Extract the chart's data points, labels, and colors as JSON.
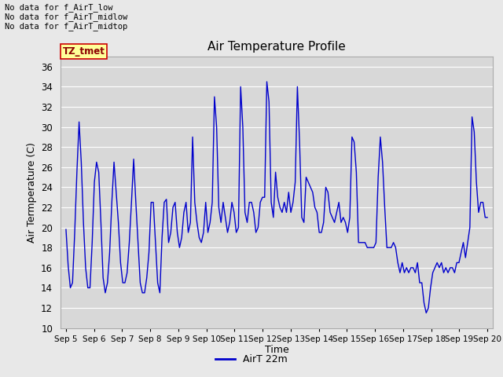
{
  "title": "Air Temperature Profile",
  "xlabel": "Time",
  "ylabel": "Air Termperature (C)",
  "legend_label": "AirT 22m",
  "ylim": [
    10,
    37
  ],
  "yticks": [
    10,
    12,
    14,
    16,
    18,
    20,
    22,
    24,
    26,
    28,
    30,
    32,
    34,
    36
  ],
  "line_color": "#0000cc",
  "fig_facecolor": "#e8e8e8",
  "plot_facecolor": "#d8d8d8",
  "annotations": [
    "No data for f_AirT_low",
    "No data for f_AirT_midlow",
    "No data for f_AirT_midtop"
  ],
  "tz_label": "TZ_tmet",
  "x_tick_labels": [
    "Sep 5",
    "Sep 6",
    "Sep 7",
    "Sep 8",
    "Sep 9",
    "Sep 10",
    "Sep 11",
    "Sep 12",
    "Sep 13",
    "Sep 14",
    "Sep 15",
    "Sep 16",
    "Sep 17",
    "Sep 18",
    "Sep 19",
    "Sep 20"
  ],
  "temp_data": [
    19.8,
    16.2,
    14.0,
    14.5,
    19.5,
    25.5,
    30.5,
    26.5,
    20.5,
    16.0,
    14.0,
    14.0,
    18.5,
    24.5,
    26.5,
    25.5,
    20.5,
    15.0,
    13.5,
    14.5,
    17.5,
    22.5,
    26.5,
    23.5,
    20.5,
    16.5,
    14.5,
    14.5,
    15.5,
    18.5,
    22.5,
    26.8,
    22.5,
    18.5,
    14.5,
    13.5,
    13.5,
    15.0,
    17.5,
    22.5,
    22.5,
    18.5,
    14.5,
    13.5,
    19.0,
    22.5,
    22.8,
    18.5,
    19.5,
    22.0,
    22.5,
    19.5,
    18.0,
    19.0,
    21.5,
    22.5,
    19.5,
    20.5,
    29.0,
    22.5,
    20.5,
    19.0,
    18.5,
    19.5,
    22.5,
    19.5,
    20.5,
    22.5,
    33.0,
    30.0,
    22.0,
    20.5,
    22.5,
    21.0,
    19.5,
    20.5,
    22.5,
    21.5,
    19.5,
    20.0,
    34.0,
    30.0,
    21.5,
    20.5,
    22.5,
    22.5,
    21.5,
    19.5,
    20.0,
    22.5,
    23.0,
    23.0,
    34.5,
    32.5,
    22.5,
    21.0,
    25.5,
    23.0,
    22.0,
    21.5,
    22.5,
    21.5,
    23.5,
    21.5,
    22.5,
    24.5,
    34.0,
    28.5,
    21.0,
    20.5,
    25.0,
    24.5,
    24.0,
    23.5,
    22.0,
    21.5,
    19.5,
    19.5,
    20.5,
    24.0,
    23.5,
    21.5,
    21.0,
    20.5,
    21.5,
    22.5,
    20.5,
    21.0,
    20.5,
    19.5,
    21.0,
    29.0,
    28.5,
    25.5,
    18.5,
    18.5,
    18.5,
    18.5,
    18.0,
    18.0,
    18.0,
    18.0,
    18.5,
    25.0,
    29.0,
    26.5,
    22.0,
    18.0,
    18.0,
    18.0,
    18.5,
    18.0,
    16.5,
    15.5,
    16.5,
    15.5,
    16.0,
    15.5,
    16.0,
    16.0,
    15.5,
    16.5,
    14.5,
    14.5,
    12.5,
    11.5,
    12.0,
    14.0,
    15.5,
    16.0,
    16.5,
    16.0,
    16.5,
    15.5,
    16.0,
    15.5,
    16.0,
    16.0,
    15.5,
    16.5,
    16.5,
    17.5,
    18.5,
    17.0,
    18.5,
    20.0,
    31.0,
    29.5,
    24.5,
    21.5,
    22.5,
    22.5,
    21.0,
    21.0
  ]
}
